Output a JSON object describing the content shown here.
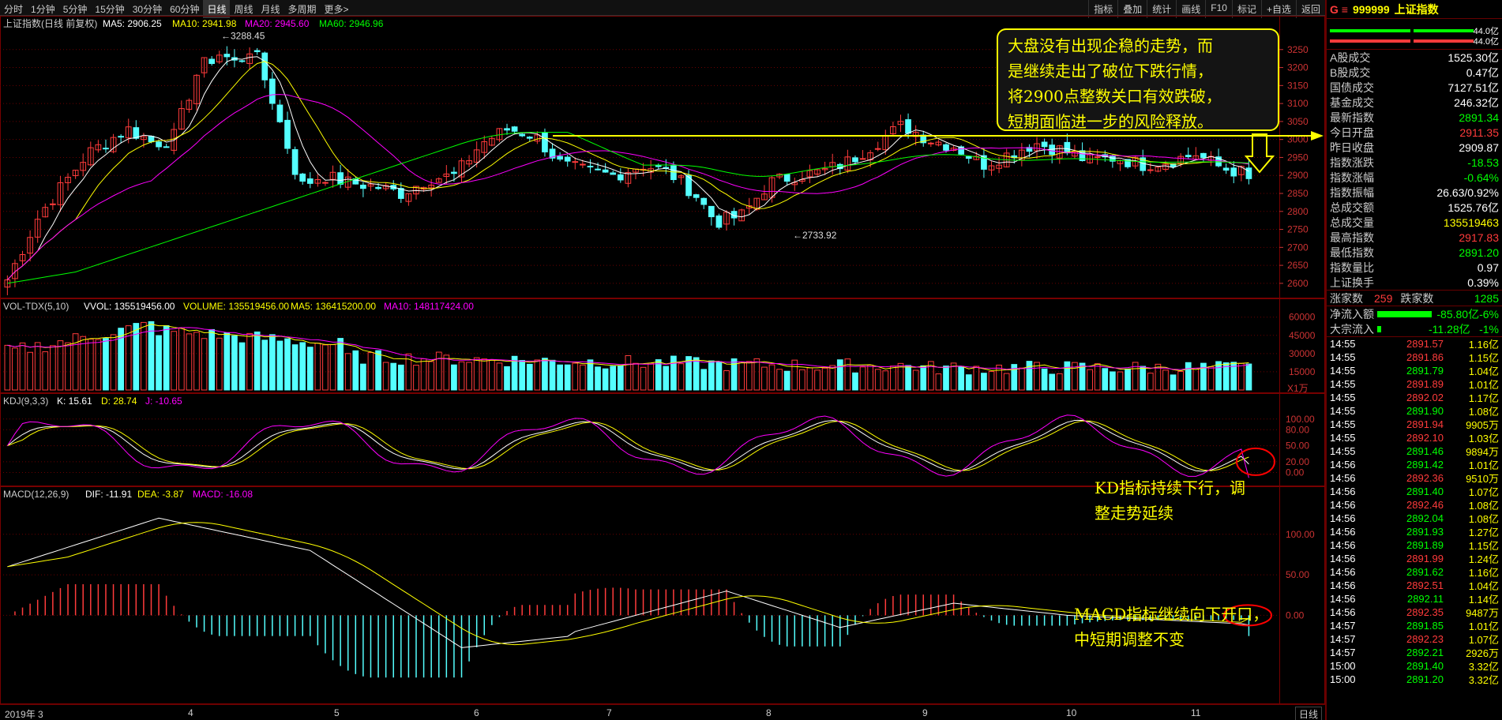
{
  "toolbar": {
    "tabs": [
      "分时",
      "1分钟",
      "5分钟",
      "15分钟",
      "30分钟",
      "60分钟",
      "日线",
      "周线",
      "月线",
      "多周期",
      "更多>"
    ],
    "active_tab": "日线",
    "tools": [
      "指标",
      "叠加",
      "统计",
      "画线",
      "F10",
      "标记",
      "+自选",
      "返回"
    ]
  },
  "main_panel": {
    "title": "上证指数(日线 前复权)",
    "ma5": "MA5: 2906.25",
    "ma10": "MA10: 2941.98",
    "ma20": "MA20: 2945.60",
    "ma60": "MA60: 2946.96",
    "high_label": "3288.45",
    "low_label": "2733.92",
    "y_ticks": [
      "3250",
      "3200",
      "3150",
      "3100",
      "3050",
      "3000",
      "2950",
      "2900",
      "2850",
      "2800",
      "2750",
      "2700",
      "2650",
      "2600"
    ]
  },
  "vol_panel": {
    "title": "VOL-TDX(5,10)",
    "vvol": "VVOL: 135519456.00",
    "volume": "VOLUME: 135519456.00",
    "ma5": "MA5: 136415200.00",
    "ma10": "MA10: 148117424.00",
    "y_ticks": [
      "60000",
      "45000",
      "30000",
      "15000"
    ],
    "unit": "X1万"
  },
  "kdj_panel": {
    "title": "KDJ(9,3,3)",
    "k": "K: 15.61",
    "d": "D: 28.74",
    "j": "J: -10.65",
    "y_ticks": [
      "100.00",
      "80.00",
      "50.00",
      "20.00",
      "0.00"
    ]
  },
  "macd_panel": {
    "title": "MACD(12,26,9)",
    "dif": "DIF: -11.91",
    "dea": "DEA: -3.87",
    "macd": "MACD: -16.08",
    "y_ticks": [
      "100.00",
      "50.00",
      "0.00"
    ]
  },
  "x_axis": {
    "labels": [
      "2019年 3",
      "4",
      "5",
      "6",
      "7",
      "8",
      "9",
      "10",
      "11"
    ],
    "period": "日线"
  },
  "annotations": {
    "box_lines": [
      "大盘没有出现企稳的走势，而",
      "是继续走出了破位下跌行情，",
      "将2900点整数关口有效跌破，",
      "短期面临进一步的风险释放。"
    ],
    "kd_lines": [
      "KD指标持续下行，调",
      "整走势延续"
    ],
    "macd_lines": [
      "MACD指标继续向下开口，",
      "中短期调整不变"
    ]
  },
  "sidebar": {
    "code": "999999",
    "name": "上证指数",
    "prefix": "G ≡",
    "bar_values": [
      "44.0亿",
      "44.0亿"
    ],
    "stats": [
      {
        "k": "A股成交",
        "v": "1525.30亿",
        "c": "white"
      },
      {
        "k": "B股成交",
        "v": "0.47亿",
        "c": "white"
      },
      {
        "k": "国债成交",
        "v": "7127.51亿",
        "c": "white"
      },
      {
        "k": "基金成交",
        "v": "246.32亿",
        "c": "white"
      },
      {
        "k": "最新指数",
        "v": "2891.34",
        "c": "green"
      },
      {
        "k": "今日开盘",
        "v": "2911.35",
        "c": "red"
      },
      {
        "k": "昨日收盘",
        "v": "2909.87",
        "c": "white"
      },
      {
        "k": "指数涨跌",
        "v": "-18.53",
        "c": "green"
      },
      {
        "k": "指数涨幅",
        "v": "-0.64%",
        "c": "green"
      },
      {
        "k": "指数振幅",
        "v": "26.63/0.92%",
        "c": "white"
      },
      {
        "k": "总成交额",
        "v": "1525.76亿",
        "c": "white"
      },
      {
        "k": "总成交量",
        "v": "135519463",
        "c": "yellow"
      },
      {
        "k": "最高指数",
        "v": "2917.83",
        "c": "red"
      },
      {
        "k": "最低指数",
        "v": "2891.20",
        "c": "green"
      },
      {
        "k": "指数量比",
        "v": "0.97",
        "c": "white"
      },
      {
        "k": "上证换手",
        "v": "0.39%",
        "c": "white"
      }
    ],
    "rise_label": "涨家数",
    "rise_value": "259",
    "fall_label": "跌家数",
    "fall_value": "1285",
    "net_inflow_label": "净流入额",
    "net_inflow_value": "-85.80亿",
    "net_inflow_pct": "-6%",
    "block_label": "大宗流入",
    "block_value": "-11.28亿",
    "block_pct": "-1%",
    "ticks": [
      [
        "14:55",
        "2891.57",
        "1.16亿",
        "r"
      ],
      [
        "14:55",
        "2891.86",
        "1.15亿",
        "r"
      ],
      [
        "14:55",
        "2891.79",
        "1.04亿",
        "g"
      ],
      [
        "14:55",
        "2891.89",
        "1.01亿",
        "r"
      ],
      [
        "14:55",
        "2892.02",
        "1.17亿",
        "r"
      ],
      [
        "14:55",
        "2891.90",
        "1.08亿",
        "g"
      ],
      [
        "14:55",
        "2891.94",
        "9905万",
        "r"
      ],
      [
        "14:55",
        "2892.10",
        "1.03亿",
        "r"
      ],
      [
        "14:55",
        "2891.46",
        "9894万",
        "g"
      ],
      [
        "14:56",
        "2891.42",
        "1.01亿",
        "g"
      ],
      [
        "14:56",
        "2892.36",
        "9510万",
        "r"
      ],
      [
        "14:56",
        "2891.40",
        "1.07亿",
        "g"
      ],
      [
        "14:56",
        "2892.46",
        "1.08亿",
        "r"
      ],
      [
        "14:56",
        "2892.04",
        "1.08亿",
        "g"
      ],
      [
        "14:56",
        "2891.93",
        "1.27亿",
        "g"
      ],
      [
        "14:56",
        "2891.89",
        "1.15亿",
        "g"
      ],
      [
        "14:56",
        "2891.99",
        "1.24亿",
        "r"
      ],
      [
        "14:56",
        "2891.62",
        "1.16亿",
        "g"
      ],
      [
        "14:56",
        "2892.51",
        "1.04亿",
        "r"
      ],
      [
        "14:56",
        "2892.11",
        "1.14亿",
        "g"
      ],
      [
        "14:56",
        "2892.35",
        "9487万",
        "r"
      ],
      [
        "14:57",
        "2891.85",
        "1.01亿",
        "g"
      ],
      [
        "14:57",
        "2892.23",
        "1.07亿",
        "r"
      ],
      [
        "14:57",
        "2892.21",
        "2926万",
        "g"
      ],
      [
        "15:00",
        "2891.40",
        "3.32亿",
        "g"
      ],
      [
        "15:00",
        "2891.20",
        "3.32亿",
        "g"
      ]
    ]
  },
  "colors": {
    "up": "#ff3b3b",
    "down": "#54ffff",
    "ma5": "#ffffff",
    "ma10": "#ffff00",
    "ma20": "#ff00ff",
    "ma60": "#00ff00",
    "grid": "#6a0000"
  }
}
